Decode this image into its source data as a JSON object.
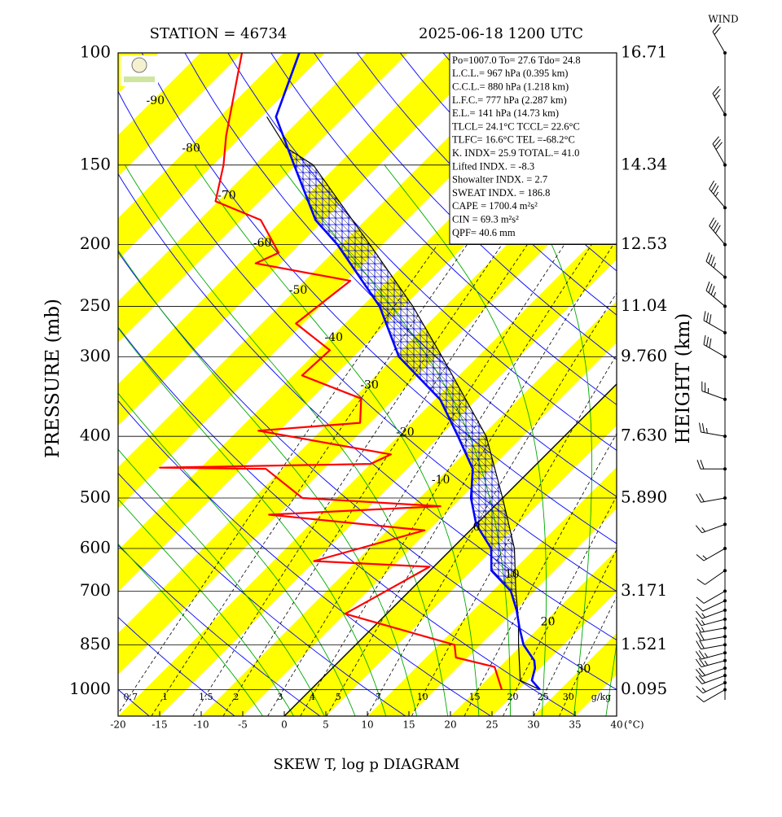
{
  "chart_data": {
    "type": "skewt",
    "station_title": "STATION = 46734",
    "time_title": "2025-06-18 1200 UTC",
    "wind_title": "WIND",
    "ylabel": "PRESSURE (mb)",
    "y2label": "HEIGHT (km)",
    "xlabel": "(°C)",
    "footer": "SKEW T, log p DIAGRAM",
    "xlim": [
      -20,
      40
    ],
    "xticks": [
      -20,
      -15,
      -10,
      -5,
      0,
      5,
      10,
      15,
      20,
      25,
      30,
      35,
      40
    ],
    "ylim": [
      1100,
      100
    ],
    "log_y": true,
    "yticks": [
      100,
      150,
      200,
      250,
      300,
      400,
      500,
      600,
      700,
      850,
      1000
    ],
    "grid": true,
    "heights": {
      "p": [
        100,
        150,
        200,
        250,
        300,
        400,
        500,
        700,
        850,
        1000
      ],
      "values": [
        16.71,
        14.34,
        12.53,
        11.04,
        9.76,
        7.63,
        5.89,
        3.171,
        1.521,
        0.095
      ],
      "value_labels": [
        "16.71",
        "14.34",
        "12.53",
        "11.04",
        "9.760",
        "7.630",
        "5.890",
        "3.171",
        "1.521",
        "0.095"
      ]
    },
    "isotherm_labels": [
      -90,
      -80,
      -70,
      -60,
      -50,
      -40,
      -30,
      -20,
      -10,
      0,
      10,
      20,
      30
    ],
    "mixing_ratio": {
      "values": [
        0.7,
        1,
        1.5,
        2,
        3,
        4,
        5,
        7,
        10,
        15,
        20,
        25,
        30
      ],
      "unit": "g/kg"
    },
    "series": [
      {
        "color": "#0000ff",
        "width": 2.6,
        "p": [
          1000,
          967,
          925,
          900,
          850,
          800,
          750,
          700,
          650,
          600,
          550,
          500,
          450,
          400,
          350,
          300,
          250,
          200,
          183,
          150,
          126,
          100
        ],
        "values": [
          27.6,
          25.5,
          24.4,
          23.4,
          20.2,
          17.7,
          15.2,
          12.2,
          7.4,
          4.7,
          0.0,
          -3.8,
          -7.1,
          -12.8,
          -19.4,
          -29.5,
          -37.9,
          -50.4,
          -56,
          -65.2,
          -73.2,
          -78.1
        ]
      },
      {
        "color": "#ff0000",
        "width": 2.2,
        "p": [
          1000,
          921,
          890,
          850,
          760,
          641,
          628,
          562,
          531,
          515,
          500,
          450,
          448,
          442,
          427,
          392,
          381,
          349,
          321,
          293,
          266,
          228,
          214,
          206,
          183,
          171,
          150,
          135,
          100
        ],
        "values": [
          23.0,
          19.4,
          13.6,
          11.9,
          -5.0,
          -0.5,
          -15.1,
          -5.5,
          -26.1,
          -6.5,
          -24.1,
          -32,
          -44.9,
          -20,
          -18.7,
          -37.5,
          -26.2,
          -29,
          -38.9,
          -38.6,
          -45.9,
          -44.5,
          -58,
          -56.5,
          -62.6,
          -70.3,
          -73.7,
          -76.9,
          -85
        ]
      },
      {
        "color": "#000000",
        "width": 1.2,
        "p": [
          1000,
          967,
          850,
          777,
          700,
          600,
          500,
          400,
          300,
          250,
          200,
          150,
          141,
          126
        ],
        "values": [
          27.6,
          24.1,
          19.6,
          16.6,
          12.8,
          7.5,
          0.0,
          -9.4,
          -24.3,
          -33.9,
          -46.5,
          -62.9,
          -68.2,
          -74.3
        ]
      }
    ],
    "cape_range": [
      777,
      141
    ],
    "info_lines": [
      "Po=1007.0 To= 27.6 Tdo= 24.8",
      "L.C.L.= 967 hPa (0.395 km)",
      "C.C.L.= 880 hPa (1.218 km)",
      "L.F.C.= 777 hPa (2.287 km)",
      "E.L.= 141 hPa (14.73 km)",
      "TLCL= 24.1°C TCCL= 22.6°C",
      "TLFC= 16.6°C TEL =-68.2°C",
      "K. INDX= 25.9 TOTAL.= 41.0",
      "Lifted INDX. = -8.3",
      "Showalter INDX. = 2.7",
      "SWEAT INDX. = 186.8",
      "CAPE = 1700.4 m²s²",
      "CIN = 69.3 m²s²",
      "QPF= 40.6 mm"
    ],
    "wind": {
      "p": [
        1000,
        975,
        950,
        925,
        900,
        875,
        850,
        825,
        800,
        775,
        750,
        725,
        700,
        650,
        600,
        550,
        500,
        450,
        400,
        350,
        300,
        275,
        250,
        225,
        200,
        175,
        150,
        125,
        100
      ],
      "dir": [
        240,
        245,
        250,
        250,
        255,
        255,
        260,
        260,
        260,
        255,
        250,
        245,
        240,
        235,
        240,
        250,
        260,
        270,
        280,
        290,
        300,
        300,
        310,
        310,
        320,
        320,
        330,
        330,
        330
      ],
      "speed": [
        10,
        15,
        20,
        20,
        25,
        25,
        20,
        20,
        15,
        15,
        15,
        10,
        10,
        10,
        15,
        15,
        20,
        20,
        25,
        25,
        30,
        30,
        35,
        35,
        40,
        35,
        30,
        25,
        20
      ]
    }
  }
}
